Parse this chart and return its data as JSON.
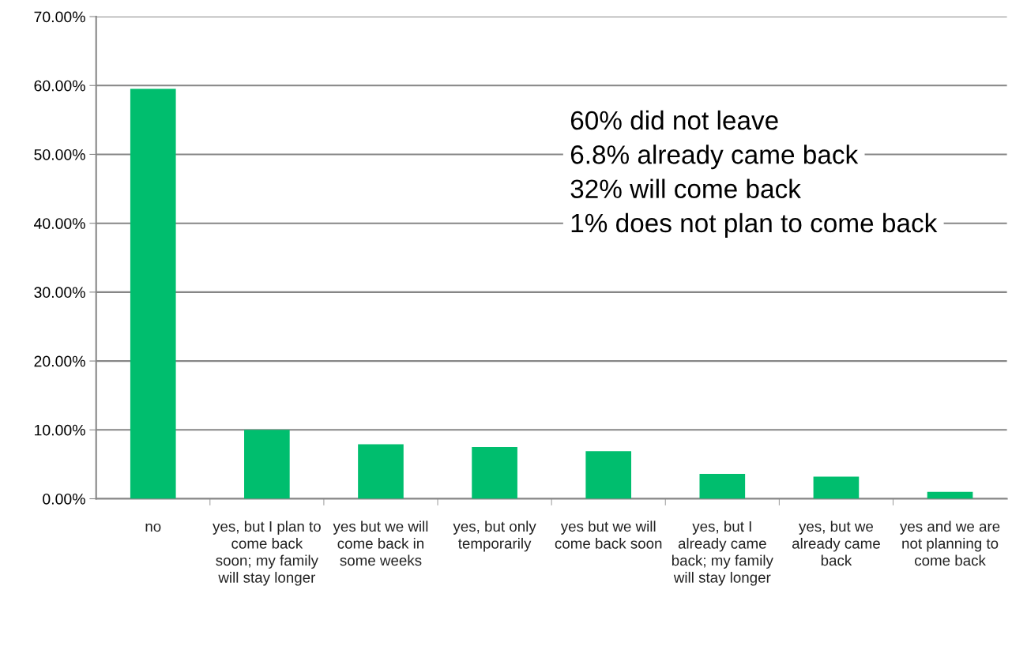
{
  "chart_data": {
    "type": "bar",
    "categories": [
      "no",
      "yes, but I plan to come back soon; my family will stay longer",
      "yes but we will come back in some weeks",
      "yes, but only temporarily",
      "yes but we will come back soon",
      "yes, but I already came back; my family will stay longer",
      "yes, but we already came back",
      "yes and we are not planning to come back"
    ],
    "values": [
      59.5,
      10.0,
      7.9,
      7.5,
      6.9,
      3.6,
      3.2,
      1.0
    ],
    "color": "#00be6e",
    "ylim": [
      0,
      70
    ],
    "yticks": [
      {
        "value": 0,
        "label": "0.00%"
      },
      {
        "value": 10,
        "label": "10.00%"
      },
      {
        "value": 20,
        "label": "20.00%"
      },
      {
        "value": 30,
        "label": "30.00%"
      },
      {
        "value": 40,
        "label": "40.00%"
      },
      {
        "value": 50,
        "label": "50.00%"
      },
      {
        "value": 60,
        "label": "60.00%"
      },
      {
        "value": 70,
        "label": "70.00%"
      }
    ],
    "grid": "y",
    "annotations": [
      "60% did not leave",
      "6.8% already came back",
      "32% will come back",
      "1% does not plan to come back"
    ]
  }
}
